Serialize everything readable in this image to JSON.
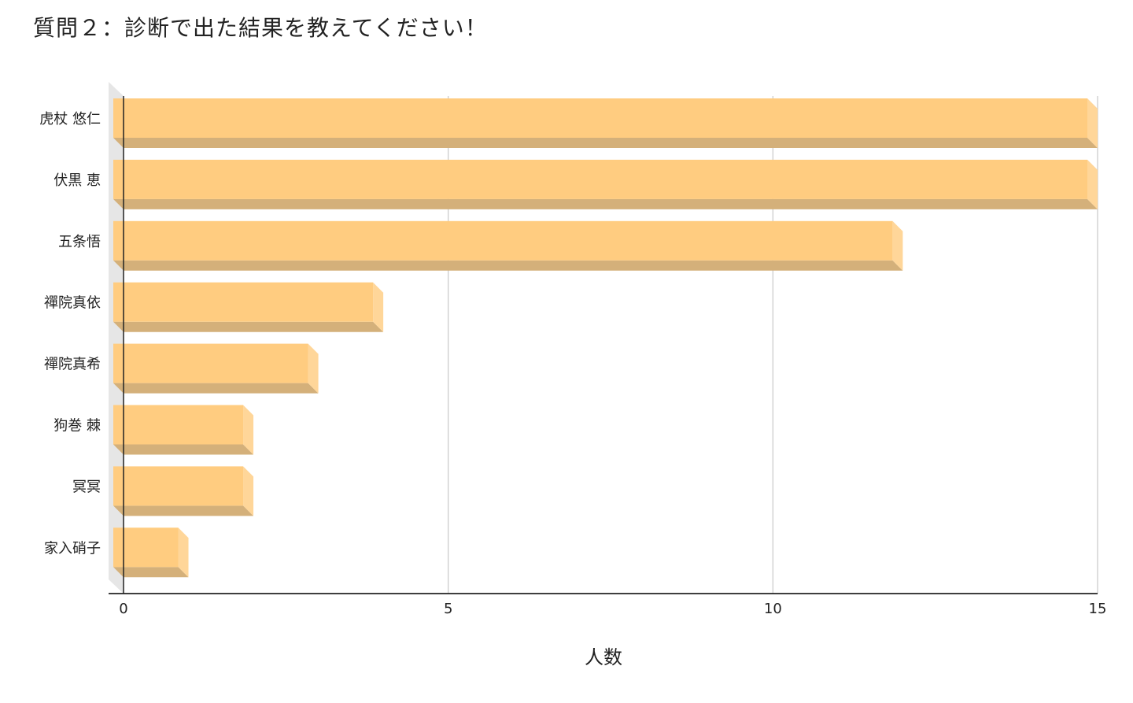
{
  "page": {
    "title": "質問２：診断で出た結果を教えてください！"
  },
  "chart_data": {
    "type": "bar",
    "orientation": "horizontal",
    "style": "3d",
    "title": "質問２：診断で出た結果を教えてください！",
    "xlabel": "人数",
    "ylabel": "",
    "categories": [
      "虎杖 悠仁",
      "伏黒 恵",
      "五条悟",
      "禪院真依",
      "禪院真希",
      "狗巻 棘",
      "冥冥",
      "家入硝子"
    ],
    "values": [
      15,
      15,
      12,
      4,
      3,
      2,
      2,
      1
    ],
    "xlim": [
      0,
      15
    ],
    "xticks": [
      "0",
      "5",
      "10",
      "15"
    ],
    "grid": true,
    "legend": "none",
    "colors": {
      "bar_face": "#ffcc80",
      "bar_bottom": "#d4b07a",
      "bar_end": "#ffd699",
      "gridline": "#c8c8c8",
      "axis": "#222222",
      "side_wall": "#e6e6e6"
    }
  }
}
